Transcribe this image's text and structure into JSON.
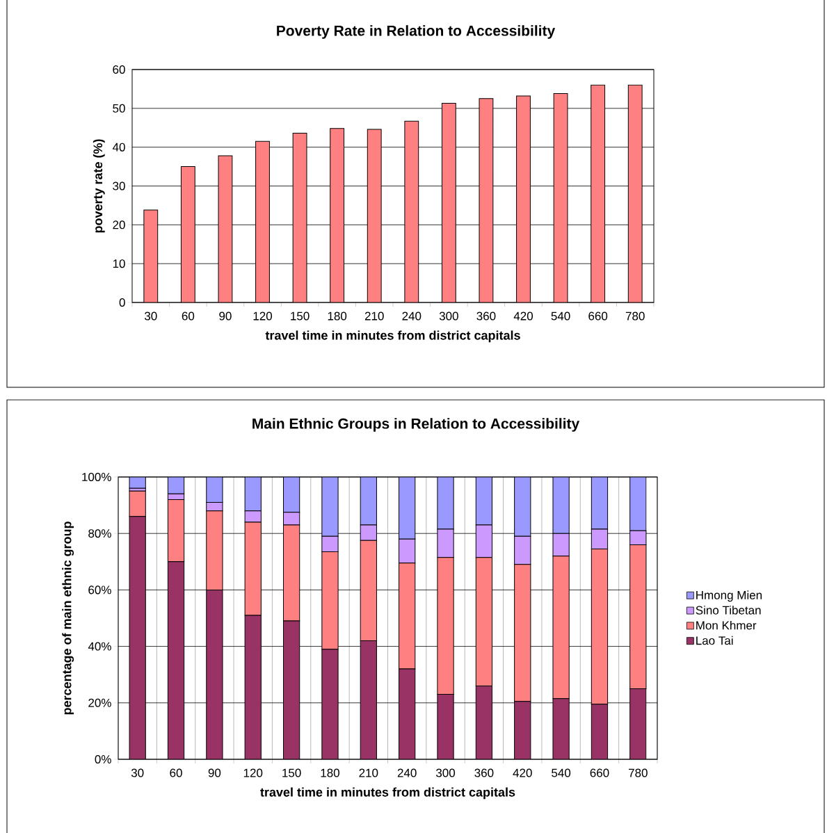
{
  "chart_data": [
    {
      "type": "bar",
      "title": "Poverty Rate in Relation to Accessibility",
      "xlabel": "travel time in minutes from district capitals",
      "ylabel": "poverty rate (%)",
      "categories": [
        "30",
        "60",
        "90",
        "120",
        "150",
        "180",
        "210",
        "240",
        "300",
        "360",
        "420",
        "540",
        "660",
        "780"
      ],
      "values": [
        23.8,
        35,
        37.8,
        41.5,
        43.6,
        44.8,
        44.6,
        46.7,
        51.3,
        52.5,
        53.2,
        53.8,
        56,
        56
      ],
      "color": "#ff8080",
      "ylim": [
        0,
        60
      ],
      "yticks": [
        0,
        10,
        20,
        30,
        40,
        50,
        60
      ],
      "grid": "y"
    },
    {
      "type": "bar",
      "stacked": true,
      "title": "Main Ethnic Groups in Relation to Accessibility",
      "xlabel": "travel time in minutes from district capitals",
      "ylabel": "percentage of main ethnic group",
      "categories": [
        "30",
        "60",
        "90",
        "120",
        "150",
        "180",
        "210",
        "240",
        "300",
        "360",
        "420",
        "540",
        "660",
        "780"
      ],
      "series": [
        {
          "name": "Lao Tai",
          "color": "#993366",
          "values": [
            86,
            70,
            60,
            51,
            49,
            39,
            42,
            32,
            23,
            26,
            20.5,
            21.5,
            19.5,
            25
          ]
        },
        {
          "name": "Mon Khmer",
          "color": "#ff8080",
          "values": [
            9,
            22,
            28,
            33,
            34,
            34.5,
            35.5,
            37.5,
            48.5,
            45.5,
            48.5,
            50.5,
            55,
            51
          ]
        },
        {
          "name": "Sino Tibetan",
          "color": "#cc99ff",
          "values": [
            1,
            2,
            3,
            4,
            4.5,
            5.5,
            5.5,
            8.5,
            10,
            11.5,
            10,
            8,
            7,
            5
          ]
        },
        {
          "name": "Hmong Mien",
          "color": "#9999ff",
          "values": [
            4,
            6,
            9,
            12,
            12.5,
            21,
            17,
            22,
            18.5,
            17,
            21,
            20,
            18.5,
            19
          ]
        }
      ],
      "ylim": [
        0,
        100
      ],
      "yticks": [
        {
          "value": 0,
          "label": "0%"
        },
        {
          "value": 20,
          "label": "20%"
        },
        {
          "value": 40,
          "label": "40%"
        },
        {
          "value": 60,
          "label": "60%"
        },
        {
          "value": 80,
          "label": "80%"
        },
        {
          "value": 100,
          "label": "100%"
        }
      ],
      "grid": true,
      "legend": "right"
    }
  ]
}
